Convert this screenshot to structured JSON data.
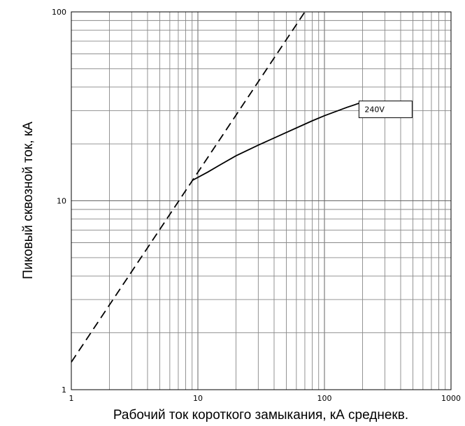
{
  "chart_data": {
    "type": "line",
    "x_scale": "log",
    "y_scale": "log",
    "xlim": [
      1,
      1000
    ],
    "ylim": [
      1,
      100
    ],
    "xlabel": "Рабочий ток короткого замыкания, кА среднекв.",
    "ylabel": "Пиковый сквозной ток, кА",
    "x_ticks": [
      {
        "value": 1,
        "label": "1"
      },
      {
        "value": 10,
        "label": "10"
      },
      {
        "value": 100,
        "label": "100"
      },
      {
        "value": 1000,
        "label": "1000"
      }
    ],
    "y_ticks": [
      {
        "value": 1,
        "label": "1"
      },
      {
        "value": 10,
        "label": "10"
      },
      {
        "value": 100,
        "label": "100"
      }
    ],
    "grid": true,
    "series": [
      {
        "style": "dashed",
        "color": "#000000",
        "x": [
          1,
          70
        ],
        "y": [
          1.4,
          100
        ]
      },
      {
        "name": "240V",
        "style": "solid",
        "color": "#000000",
        "x": [
          9,
          12,
          15,
          20,
          30,
          50,
          80,
          100,
          150,
          200
        ],
        "y": [
          12.8,
          14.2,
          15.5,
          17.3,
          19.7,
          23.0,
          26.5,
          28.2,
          31.2,
          33.3
        ]
      }
    ],
    "annotations": [
      {
        "text": "240V",
        "x": 300,
        "y": 31
      }
    ]
  }
}
